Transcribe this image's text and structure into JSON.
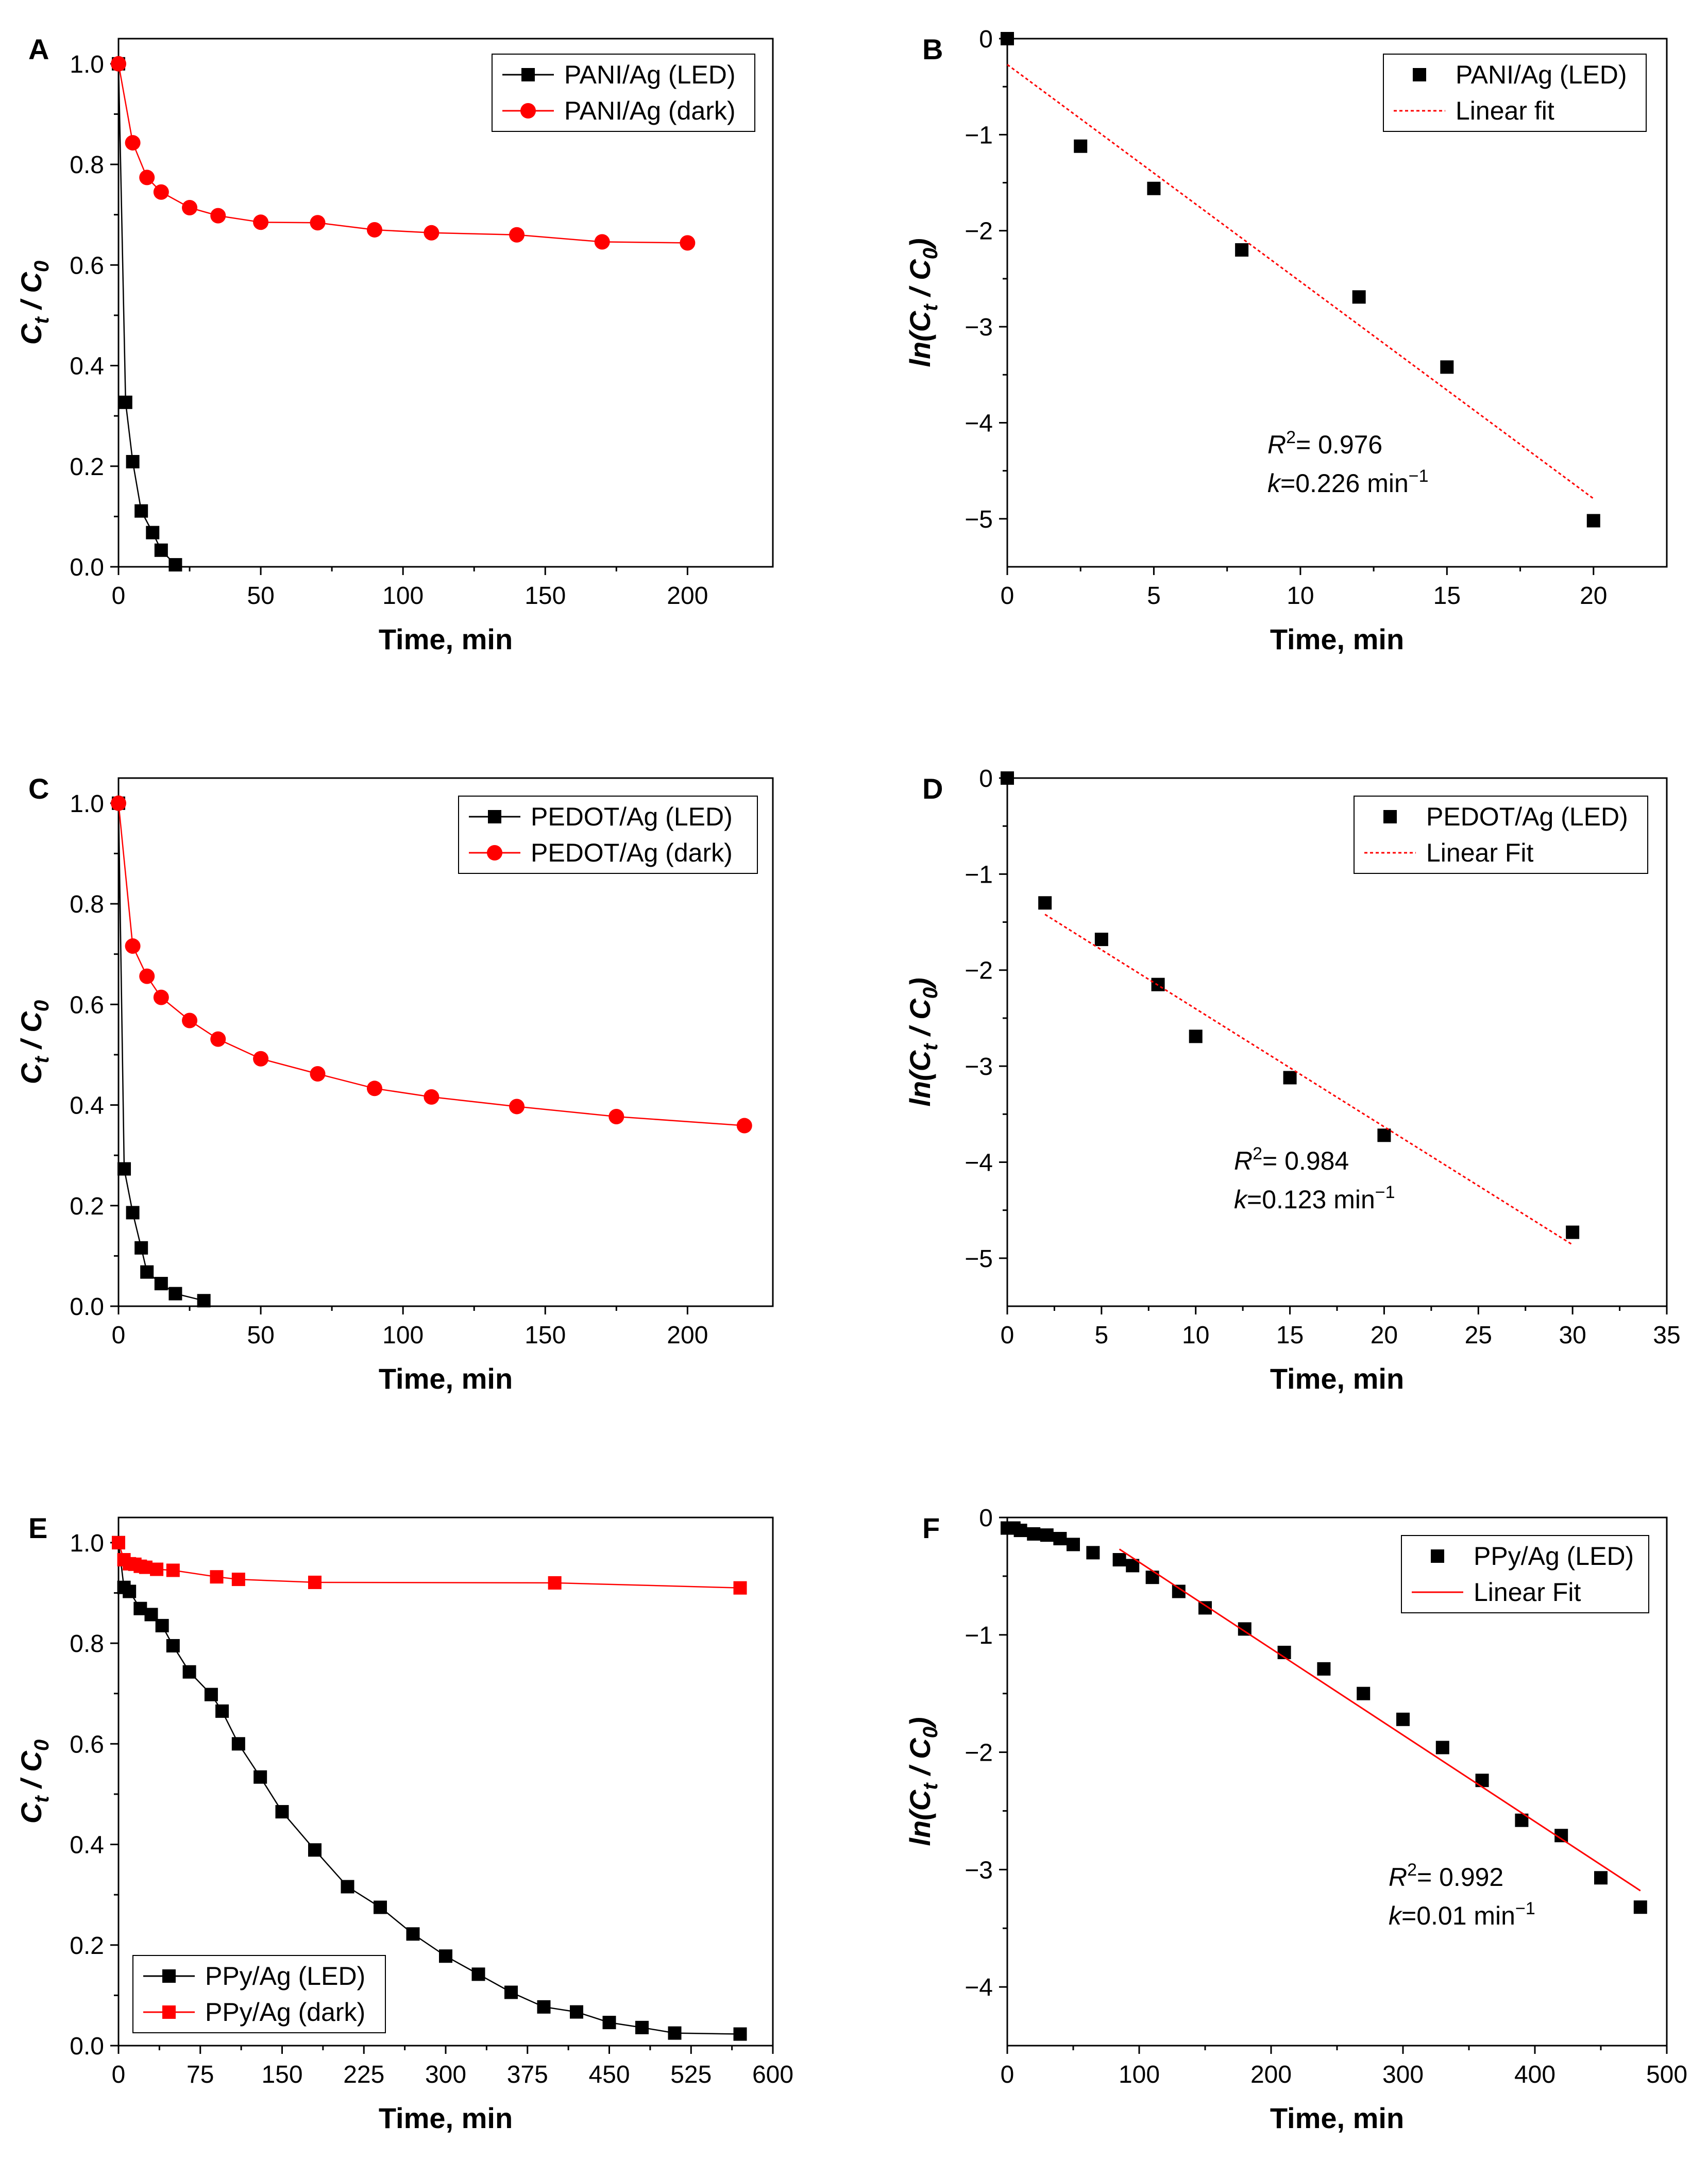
{
  "figure": {
    "panels": [
      {
        "letter": "A",
        "xlabel": "Time, min",
        "ylabel_main": "C",
        "ylabel_sub1": "t",
        "ylabel_mid": " / C",
        "ylabel_sub2": "0",
        "ylabel_style": "ratio"
      },
      {
        "letter": "B",
        "xlabel": "Time, min",
        "ylabel_main": "ln(C",
        "ylabel_sub1": "t",
        "ylabel_mid": " / C",
        "ylabel_sub2": "0",
        "ylabel_end": ")",
        "ylabel_style": "ln",
        "annotation": {
          "r2_text": "= 0.976",
          "k_text": "=0.226 min"
        }
      },
      {
        "letter": "C",
        "xlabel": "Time, min",
        "ylabel_main": "C",
        "ylabel_sub1": "t",
        "ylabel_mid": " / C",
        "ylabel_sub2": "0",
        "ylabel_style": "ratio"
      },
      {
        "letter": "D",
        "xlabel": "Time, min",
        "ylabel_main": "ln(C",
        "ylabel_sub1": "t",
        "ylabel_mid": " / C",
        "ylabel_sub2": "0",
        "ylabel_end": ")",
        "ylabel_style": "ln",
        "annotation": {
          "r2_text": "= 0.984",
          "k_text": "=0.123 min"
        }
      },
      {
        "letter": "E",
        "xlabel": "Time, min",
        "ylabel_main": "C",
        "ylabel_sub1": "t",
        "ylabel_mid": " / C",
        "ylabel_sub2": "0",
        "ylabel_style": "ratio"
      },
      {
        "letter": "F",
        "xlabel": "Time, min",
        "ylabel_main": "ln(C",
        "ylabel_sub1": "t",
        "ylabel_mid": " / C",
        "ylabel_sub2": "0",
        "ylabel_end": ")",
        "ylabel_style": "ln",
        "annotation": {
          "r2_text": "= 0.992",
          "k_text": "=0.01 min"
        }
      }
    ],
    "annotation_labels": {
      "r": "R",
      "r_sup": "2",
      "k": "k",
      "unit_sup": "−1"
    }
  },
  "chart_data": [
    {
      "panel": "A",
      "type": "line",
      "xlim": [
        0,
        230
      ],
      "ylim": [
        0,
        1.05
      ],
      "xticks": [
        0,
        50,
        100,
        150,
        200
      ],
      "yticks": [
        0.0,
        0.2,
        0.4,
        0.6,
        0.8,
        1.0
      ],
      "xlabel": "Time, min",
      "ylabel": "Ct / C0",
      "legend_position": "top-right",
      "series": [
        {
          "name": "PANI/Ag (LED)",
          "marker": "square",
          "color": "#000000",
          "line": "solid",
          "x": [
            0,
            2.5,
            5,
            8,
            12,
            15,
            20
          ],
          "y": [
            1.0,
            0.327,
            0.209,
            0.111,
            0.068,
            0.033,
            0.004
          ]
        },
        {
          "name": "PANI/Ag (dark)",
          "marker": "circle",
          "color": "#ff0000",
          "line": "solid",
          "x": [
            0,
            5,
            10,
            15,
            25,
            35,
            50,
            70,
            90,
            110,
            140,
            170,
            200
          ],
          "y": [
            1.0,
            0.843,
            0.774,
            0.745,
            0.714,
            0.698,
            0.685,
            0.684,
            0.67,
            0.664,
            0.66,
            0.646,
            0.644
          ]
        }
      ]
    },
    {
      "panel": "B",
      "type": "scatter",
      "xlim": [
        0,
        22.5
      ],
      "ylim": [
        -5.5,
        0
      ],
      "xticks": [
        0,
        5,
        10,
        15,
        20
      ],
      "yticks": [
        0,
        -1,
        -2,
        -3,
        -4,
        -5
      ],
      "xlabel": "Time, min",
      "ylabel": "ln(Ct / C0)",
      "legend_position": "top-right",
      "series": [
        {
          "name": "PANI/Ag (LED)",
          "marker": "square",
          "color": "#000000",
          "line": "none",
          "x": [
            0,
            2.5,
            5,
            8,
            12,
            15,
            20
          ],
          "y": [
            0,
            -1.12,
            -1.56,
            -2.2,
            -2.69,
            -3.42,
            -5.02
          ]
        },
        {
          "name": "Linear fit",
          "marker": "none",
          "color": "#ff0000",
          "line": "dotted",
          "x": [
            0,
            20
          ],
          "y": [
            -0.27,
            -4.79
          ]
        }
      ],
      "annotation": {
        "r2": 0.976,
        "k": 0.226
      }
    },
    {
      "panel": "C",
      "type": "line",
      "xlim": [
        0,
        230
      ],
      "ylim": [
        0,
        1.05
      ],
      "xticks": [
        0,
        50,
        100,
        150,
        200
      ],
      "yticks": [
        0.0,
        0.2,
        0.4,
        0.6,
        0.8,
        1.0
      ],
      "xlabel": "Time, min",
      "ylabel": "Ct / C0",
      "legend_position": "top-right",
      "series": [
        {
          "name": "PEDOT/Ag (LED)",
          "marker": "square",
          "color": "#000000",
          "line": "solid",
          "x": [
            0,
            2,
            5,
            8,
            10,
            15,
            20,
            30
          ],
          "y": [
            1.0,
            0.273,
            0.186,
            0.116,
            0.068,
            0.045,
            0.025,
            0.011
          ]
        },
        {
          "name": "PEDOT/Ag (dark)",
          "marker": "circle",
          "color": "#ff0000",
          "line": "solid",
          "x": [
            0,
            5,
            10,
            15,
            25,
            35,
            50,
            70,
            90,
            110,
            140,
            175,
            220
          ],
          "y": [
            1.0,
            0.716,
            0.656,
            0.614,
            0.568,
            0.531,
            0.492,
            0.462,
            0.433,
            0.416,
            0.397,
            0.377,
            0.359
          ]
        }
      ]
    },
    {
      "panel": "D",
      "type": "scatter",
      "xlim": [
        0,
        35
      ],
      "ylim": [
        -5.5,
        0
      ],
      "xticks": [
        0,
        5,
        10,
        15,
        20,
        25,
        30,
        35
      ],
      "yticks": [
        0,
        -1,
        -2,
        -3,
        -4,
        -5
      ],
      "xlabel": "Time, min",
      "ylabel": "ln(Ct / C0)",
      "legend_position": "top-right",
      "series": [
        {
          "name": "PEDOT/Ag (LED)",
          "marker": "square",
          "color": "#000000",
          "line": "none",
          "x": [
            0,
            2,
            5,
            8,
            10,
            15,
            20,
            30
          ],
          "y": [
            0,
            -1.3,
            -1.68,
            -2.15,
            -2.69,
            -3.12,
            -3.72,
            -4.73
          ]
        },
        {
          "name": "Linear Fit",
          "marker": "none",
          "color": "#ff0000",
          "line": "dotted",
          "x": [
            2,
            30
          ],
          "y": [
            -1.42,
            -4.86
          ]
        }
      ],
      "annotation": {
        "r2": 0.984,
        "k": 0.123
      }
    },
    {
      "panel": "E",
      "type": "line",
      "xlim": [
        0,
        600
      ],
      "ylim": [
        0,
        1.05
      ],
      "xticks": [
        0,
        75,
        150,
        225,
        300,
        375,
        450,
        525,
        600
      ],
      "yticks": [
        0.0,
        0.2,
        0.4,
        0.6,
        0.8,
        1.0
      ],
      "xlabel": "Time, min",
      "ylabel": "Ct / C0",
      "legend_position": "bottom-left",
      "series": [
        {
          "name": "PPy/Ag (LED)",
          "marker": "square",
          "color": "#000000",
          "line": "solid",
          "x": [
            0,
            5,
            10,
            20,
            30,
            40,
            50,
            65,
            85,
            95,
            110,
            130,
            150,
            180,
            210,
            240,
            270,
            300,
            330,
            360,
            390,
            420,
            450,
            480,
            510,
            570
          ],
          "y": [
            1.0,
            0.911,
            0.903,
            0.869,
            0.857,
            0.835,
            0.795,
            0.743,
            0.698,
            0.665,
            0.6,
            0.534,
            0.465,
            0.389,
            0.316,
            0.275,
            0.222,
            0.178,
            0.142,
            0.106,
            0.077,
            0.067,
            0.046,
            0.036,
            0.025,
            0.023
          ]
        },
        {
          "name": "PPy/Ag (dark)",
          "marker": "square",
          "color": "#ff0000",
          "line": "solid",
          "x": [
            0,
            5,
            10,
            15,
            20,
            25,
            35,
            50,
            90,
            110,
            180,
            400,
            570
          ],
          "y": [
            1.0,
            0.966,
            0.958,
            0.957,
            0.953,
            0.951,
            0.947,
            0.945,
            0.932,
            0.927,
            0.921,
            0.92,
            0.91
          ]
        }
      ]
    },
    {
      "panel": "F",
      "type": "scatter",
      "xlim": [
        0,
        500
      ],
      "ylim": [
        -4.5,
        0
      ],
      "xticks": [
        0,
        100,
        200,
        300,
        400,
        500
      ],
      "yticks": [
        0,
        -1,
        -2,
        -3,
        -4
      ],
      "xlabel": "Time, min",
      "ylabel": "ln(Ct / C0)",
      "legend_position": "top-right",
      "series": [
        {
          "name": "PPy/Ag (LED)",
          "marker": "square",
          "color": "#000000",
          "line": "none",
          "x": [
            0,
            5,
            10,
            20,
            30,
            40,
            50,
            65,
            85,
            95,
            110,
            130,
            150,
            180,
            210,
            240,
            270,
            300,
            330,
            360,
            390,
            420,
            450,
            480
          ],
          "y": [
            -0.09,
            -0.09,
            -0.11,
            -0.14,
            -0.15,
            -0.18,
            -0.23,
            -0.3,
            -0.36,
            -0.41,
            -0.51,
            -0.63,
            -0.77,
            -0.95,
            -1.15,
            -1.29,
            -1.5,
            -1.72,
            -1.96,
            -2.24,
            -2.58,
            -2.71,
            -3.07,
            -3.32
          ]
        },
        {
          "name": "Linear Fit",
          "marker": "none",
          "color": "#ff0000",
          "line": "solid",
          "x": [
            85,
            480
          ],
          "y": [
            -0.27,
            -3.18
          ]
        }
      ],
      "annotation": {
        "r2": 0.992,
        "k": 0.01
      }
    }
  ]
}
